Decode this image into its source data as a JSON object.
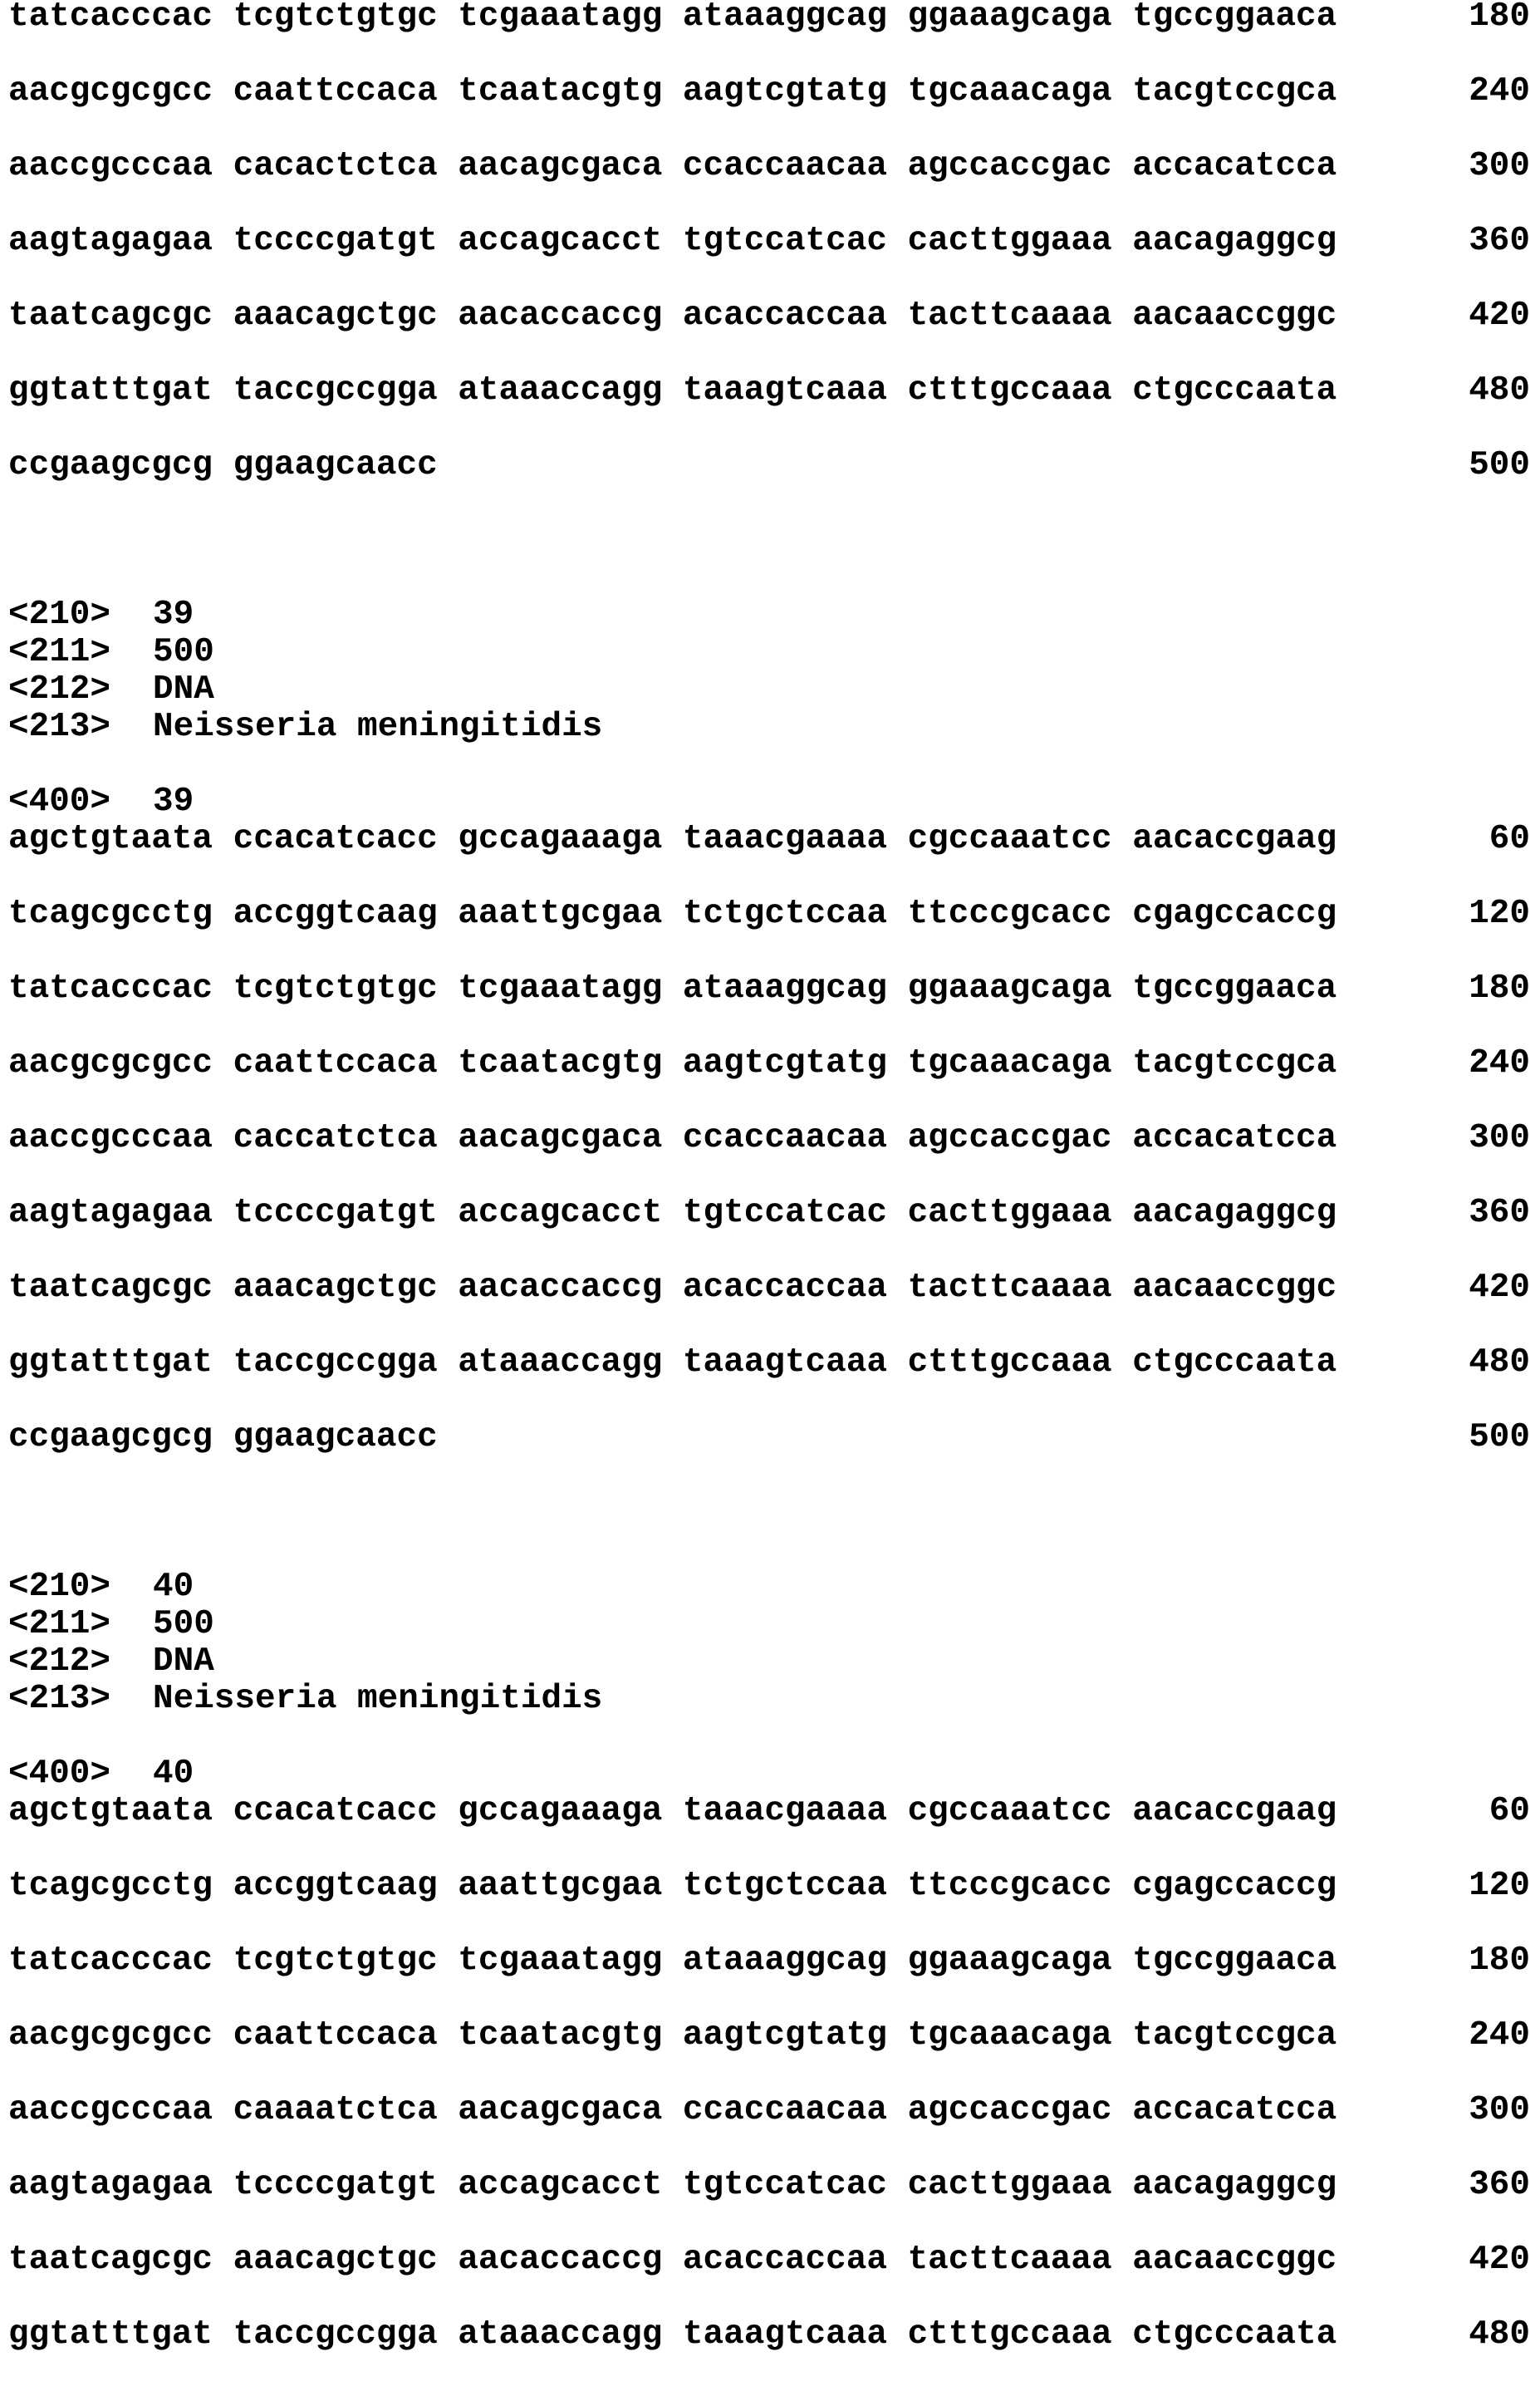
{
  "continuation": {
    "rows": [
      {
        "seq": "tatcacccac tcgtctgtgc tcgaaatagg ataaaggcag ggaaagcaga tgccggaaca",
        "num": "180"
      },
      {
        "seq": "aacgcgcgcc caattccaca tcaatacgtg aagtcgtatg tgcaaacaga tacgtccgca",
        "num": "240"
      },
      {
        "seq": "aaccgcccaa cacactctca aacagcgaca ccaccaacaa agccaccgac accacatcca",
        "num": "300"
      },
      {
        "seq": "aagtagagaa tccccgatgt accagcacct tgtccatcac cacttggaaa aacagaggcg",
        "num": "360"
      },
      {
        "seq": "taatcagcgc aaacagctgc aacaccaccg acaccaccaa tacttcaaaa aacaaccggc",
        "num": "420"
      },
      {
        "seq": "ggtatttgat taccgccgga ataaaccagg taaagtcaaa ctttgccaaa ctgcccaata",
        "num": "480"
      },
      {
        "seq": "ccgaagcgcg ggaagcaacc",
        "num": "500"
      }
    ]
  },
  "entries": [
    {
      "fields": [
        {
          "tag": "<210>",
          "value": "39"
        },
        {
          "tag": "<211>",
          "value": "500"
        },
        {
          "tag": "<212>",
          "value": "DNA"
        },
        {
          "tag": "<213>",
          "value": "Neisseria meningitidis"
        }
      ],
      "seq_header": {
        "tag": "<400>",
        "value": "39"
      },
      "rows": [
        {
          "seq": "agctgtaata ccacatcacc gccagaaaga taaacgaaaa cgccaaatcc aacaccgaag",
          "num": "60"
        },
        {
          "seq": "tcagcgcctg accggtcaag aaattgcgaa tctgctccaa ttcccgcacc cgagccaccg",
          "num": "120"
        },
        {
          "seq": "tatcacccac tcgtctgtgc tcgaaatagg ataaaggcag ggaaagcaga tgccggaaca",
          "num": "180"
        },
        {
          "seq": "aacgcgcgcc caattccaca tcaatacgtg aagtcgtatg tgcaaacaga tacgtccgca",
          "num": "240"
        },
        {
          "seq": "aaccgcccaa caccatctca aacagcgaca ccaccaacaa agccaccgac accacatcca",
          "num": "300"
        },
        {
          "seq": "aagtagagaa tccccgatgt accagcacct tgtccatcac cacttggaaa aacagaggcg",
          "num": "360"
        },
        {
          "seq": "taatcagcgc aaacagctgc aacaccaccg acaccaccaa tacttcaaaa aacaaccggc",
          "num": "420"
        },
        {
          "seq": "ggtatttgat taccgccgga ataaaccagg taaagtcaaa ctttgccaaa ctgcccaata",
          "num": "480"
        },
        {
          "seq": "ccgaagcgcg ggaagcaacc",
          "num": "500"
        }
      ]
    },
    {
      "fields": [
        {
          "tag": "<210>",
          "value": "40"
        },
        {
          "tag": "<211>",
          "value": "500"
        },
        {
          "tag": "<212>",
          "value": "DNA"
        },
        {
          "tag": "<213>",
          "value": "Neisseria meningitidis"
        }
      ],
      "seq_header": {
        "tag": "<400>",
        "value": "40"
      },
      "rows": [
        {
          "seq": "agctgtaata ccacatcacc gccagaaaga taaacgaaaa cgccaaatcc aacaccgaag",
          "num": "60"
        },
        {
          "seq": "tcagcgcctg accggtcaag aaattgcgaa tctgctccaa ttcccgcacc cgagccaccg",
          "num": "120"
        },
        {
          "seq": "tatcacccac tcgtctgtgc tcgaaatagg ataaaggcag ggaaagcaga tgccggaaca",
          "num": "180"
        },
        {
          "seq": "aacgcgcgcc caattccaca tcaatacgtg aagtcgtatg tgcaaacaga tacgtccgca",
          "num": "240"
        },
        {
          "seq": "aaccgcccaa caaaatctca aacagcgaca ccaccaacaa agccaccgac accacatcca",
          "num": "300"
        },
        {
          "seq": "aagtagagaa tccccgatgt accagcacct tgtccatcac cacttggaaa aacagaggcg",
          "num": "360"
        },
        {
          "seq": "taatcagcgc aaacagctgc aacaccaccg acaccaccaa tacttcaaaa aacaaccggc",
          "num": "420"
        },
        {
          "seq": "ggtatttgat taccgccgga ataaaccagg taaagtcaaa ctttgccaaa ctgcccaata",
          "num": "480"
        }
      ]
    }
  ]
}
